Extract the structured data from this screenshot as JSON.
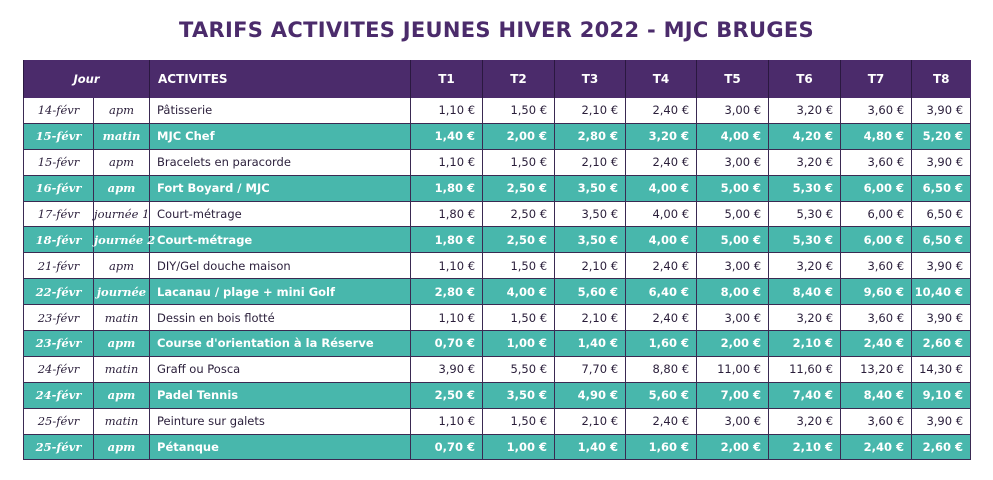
{
  "title": "TARIFS ACTIVITES JEUNES HIVER 2022 - MJC BRUGES",
  "colors": {
    "header_bg": "#4b2b6b",
    "teal_row": "#48b7ac",
    "white_row": "#ffffff"
  },
  "headers": {
    "jour": "Jour",
    "activites": "ACTIVITES",
    "tiers": [
      "T1",
      "T2",
      "T3",
      "T4",
      "T5",
      "T6",
      "T7",
      "T8"
    ]
  },
  "rows": [
    {
      "day": "14-févr",
      "time": "apm",
      "activity": "Pâtisserie",
      "style": "white",
      "prices": [
        "1,10 €",
        "1,50 €",
        "2,10 €",
        "2,40 €",
        "3,00 €",
        "3,20 €",
        "3,60 €",
        "3,90 €"
      ]
    },
    {
      "day": "15-févr",
      "time": "matin",
      "activity": "MJC Chef",
      "style": "teal",
      "prices": [
        "1,40 €",
        "2,00 €",
        "2,80 €",
        "3,20 €",
        "4,00 €",
        "4,20 €",
        "4,80 €",
        "5,20 €"
      ]
    },
    {
      "day": "15-févr",
      "time": "apm",
      "activity": "Bracelets en paracorde",
      "style": "white",
      "prices": [
        "1,10 €",
        "1,50 €",
        "2,10 €",
        "2,40 €",
        "3,00 €",
        "3,20 €",
        "3,60 €",
        "3,90 €"
      ]
    },
    {
      "day": "16-févr",
      "time": "apm",
      "activity": "Fort Boyard / MJC",
      "style": "teal",
      "prices": [
        "1,80 €",
        "2,50 €",
        "3,50 €",
        "4,00 €",
        "5,00 €",
        "5,30 €",
        "6,00 €",
        "6,50 €"
      ]
    },
    {
      "day": "17-févr",
      "time": "journée 1",
      "activity": "Court-métrage",
      "style": "white",
      "prices": [
        "1,80 €",
        "2,50 €",
        "3,50 €",
        "4,00 €",
        "5,00 €",
        "5,30 €",
        "6,00 €",
        "6,50 €"
      ]
    },
    {
      "day": "18-févr",
      "time": "journée 2",
      "activity": "Court-métrage",
      "style": "teal",
      "prices": [
        "1,80 €",
        "2,50 €",
        "3,50 €",
        "4,00 €",
        "5,00 €",
        "5,30 €",
        "6,00 €",
        "6,50 €"
      ]
    },
    {
      "day": "21-févr",
      "time": "apm",
      "activity": "DIY/Gel douche maison",
      "style": "white",
      "prices": [
        "1,10 €",
        "1,50 €",
        "2,10 €",
        "2,40 €",
        "3,00 €",
        "3,20 €",
        "3,60 €",
        "3,90 €"
      ]
    },
    {
      "day": "22-févr",
      "time": "journée",
      "activity": "Lacanau / plage + mini Golf",
      "style": "teal",
      "prices": [
        "2,80 €",
        "4,00 €",
        "5,60 €",
        "6,40 €",
        "8,00 €",
        "8,40 €",
        "9,60 €",
        "10,40 €"
      ]
    },
    {
      "day": "23-févr",
      "time": "matin",
      "activity": "Dessin en bois flotté",
      "style": "white",
      "prices": [
        "1,10 €",
        "1,50 €",
        "2,10 €",
        "2,40 €",
        "3,00 €",
        "3,20 €",
        "3,60 €",
        "3,90 €"
      ]
    },
    {
      "day": "23-févr",
      "time": "apm",
      "activity": "Course d'orientation à la Réserve",
      "style": "teal",
      "prices": [
        "0,70 €",
        "1,00 €",
        "1,40 €",
        "1,60 €",
        "2,00 €",
        "2,10 €",
        "2,40 €",
        "2,60 €"
      ]
    },
    {
      "day": "24-févr",
      "time": "matin",
      "activity": "Graff ou Posca",
      "style": "white",
      "prices": [
        "3,90 €",
        "5,50 €",
        "7,70 €",
        "8,80 €",
        "11,00 €",
        "11,60 €",
        "13,20 €",
        "14,30 €"
      ]
    },
    {
      "day": "24-févr",
      "time": "apm",
      "activity": "Padel Tennis",
      "style": "teal",
      "prices": [
        "2,50 €",
        "3,50 €",
        "4,90 €",
        "5,60 €",
        "7,00 €",
        "7,40 €",
        "8,40 €",
        "9,10 €"
      ]
    },
    {
      "day": "25-févr",
      "time": "matin",
      "activity": "Peinture sur galets",
      "style": "white",
      "prices": [
        "1,10 €",
        "1,50 €",
        "2,10 €",
        "2,40 €",
        "3,00 €",
        "3,20 €",
        "3,60 €",
        "3,90 €"
      ]
    },
    {
      "day": "25-févr",
      "time": "apm",
      "activity": "Pétanque",
      "style": "teal",
      "prices": [
        "0,70 €",
        "1,00 €",
        "1,40 €",
        "1,60 €",
        "2,00 €",
        "2,10 €",
        "2,40 €",
        "2,60 €"
      ]
    }
  ]
}
